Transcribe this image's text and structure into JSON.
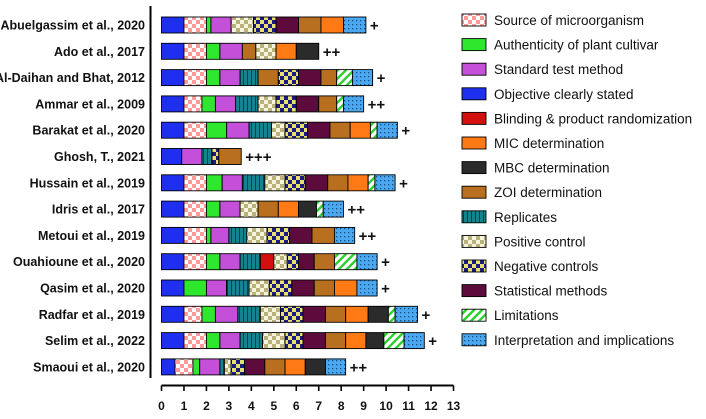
{
  "chart_data": {
    "type": "bar",
    "stacked": true,
    "orientation": "horizontal",
    "title": "",
    "xlabel": "",
    "ylabel": "",
    "xlim": [
      0,
      13
    ],
    "x_ticks": [
      "0",
      "1",
      "2",
      "3",
      "4",
      "5",
      "6",
      "7",
      "8",
      "9",
      "10",
      "11",
      "12",
      "13"
    ],
    "criteria": [
      {
        "key": "src",
        "name": "Source of microorganism",
        "color": "#ff9a9a",
        "pattern": "checker_red"
      },
      {
        "key": "auth",
        "name": "Authenticity of plant cultivar",
        "color": "#2ee82e",
        "pattern": "solid"
      },
      {
        "key": "std",
        "name": "Standard test method",
        "color": "#c44fd8",
        "pattern": "solid"
      },
      {
        "key": "obj",
        "name": "Objective clearly stated",
        "color": "#1f2ff0",
        "pattern": "solid"
      },
      {
        "key": "blind",
        "name": "Blinding & product randomization",
        "color": "#d40f0f",
        "pattern": "solid"
      },
      {
        "key": "mic",
        "name": "MIC determination",
        "color": "#ff7a14",
        "pattern": "solid"
      },
      {
        "key": "mbc",
        "name": "MBC determination",
        "color": "#2b2b2b",
        "pattern": "solid"
      },
      {
        "key": "zoi",
        "name": "ZOI determination",
        "color": "#b87020",
        "pattern": "solid"
      },
      {
        "key": "rep",
        "name": "Replicates",
        "color": "#14838f",
        "pattern": "vstripes"
      },
      {
        "key": "pos",
        "name": "Positive control",
        "color": "#e4e0b8",
        "pattern": "checker_olive"
      },
      {
        "key": "neg",
        "name": "Negative controls",
        "color": "#2020a0",
        "pattern": "checker_navy"
      },
      {
        "key": "stat",
        "name": "Statistical methods",
        "color": "#5c0b3c",
        "pattern": "solid"
      },
      {
        "key": "lim",
        "name": "Limitations",
        "color": "#2fd02f",
        "pattern": "diag"
      },
      {
        "key": "interp",
        "name": "Interpretation and implications",
        "color": "#4aa8f0",
        "pattern": "dots"
      }
    ],
    "studies": [
      {
        "label": "Abuelgassim et al., 2020",
        "rating": "+",
        "segments": [
          [
            "obj",
            1
          ],
          [
            "src",
            1
          ],
          [
            "auth",
            0.2
          ],
          [
            "std",
            0.9
          ],
          [
            "pos",
            1
          ],
          [
            "neg",
            1
          ],
          [
            "stat",
            1
          ],
          [
            "zoi",
            1
          ],
          [
            "mic",
            1
          ],
          [
            "interp",
            1
          ]
        ]
      },
      {
        "label": "Ado et al., 2017",
        "rating": "++",
        "segments": [
          [
            "obj",
            1
          ],
          [
            "src",
            1
          ],
          [
            "auth",
            0.6
          ],
          [
            "std",
            1
          ],
          [
            "zoi",
            0.6
          ],
          [
            "pos",
            0.9
          ],
          [
            "mic",
            0.9
          ],
          [
            "mbc",
            1
          ]
        ]
      },
      {
        "label": "Al-Daihan and Bhat, 2012",
        "rating": "+",
        "segments": [
          [
            "obj",
            1
          ],
          [
            "src",
            1
          ],
          [
            "auth",
            0.6
          ],
          [
            "std",
            0.9
          ],
          [
            "rep",
            0.8
          ],
          [
            "zoi",
            0.9
          ],
          [
            "neg",
            0.9
          ],
          [
            "stat",
            1
          ],
          [
            "zoi",
            0.7
          ],
          [
            "lim",
            0.7
          ],
          [
            "interp",
            0.9
          ]
        ]
      },
      {
        "label": "Ammar et al., 2009",
        "rating": "++",
        "segments": [
          [
            "obj",
            1
          ],
          [
            "src",
            0.8
          ],
          [
            "auth",
            0.6
          ],
          [
            "std",
            0.9
          ],
          [
            "rep",
            1
          ],
          [
            "pos",
            0.8
          ],
          [
            "neg",
            0.9
          ],
          [
            "stat",
            1
          ],
          [
            "zoi",
            0.8
          ],
          [
            "lim",
            0.3
          ],
          [
            "interp",
            0.9
          ]
        ]
      },
      {
        "label": "Barakat et al., 2020",
        "rating": "+",
        "segments": [
          [
            "obj",
            1
          ],
          [
            "src",
            1
          ],
          [
            "auth",
            0.9
          ],
          [
            "std",
            1
          ],
          [
            "rep",
            1
          ],
          [
            "pos",
            0.6
          ],
          [
            "neg",
            1
          ],
          [
            "stat",
            1
          ],
          [
            "zoi",
            0.9
          ],
          [
            "mic",
            0.9
          ],
          [
            "lim",
            0.3
          ],
          [
            "interp",
            0.9
          ]
        ]
      },
      {
        "label": "Ghosh, T., 2021",
        "rating": "+++",
        "segments": [
          [
            "obj",
            0.9
          ],
          [
            "std",
            0.9
          ],
          [
            "rep",
            0.45
          ],
          [
            "neg",
            0.3
          ],
          [
            "zoi",
            1.0
          ]
        ]
      },
      {
        "label": "Hussain et al., 2019",
        "rating": "+",
        "segments": [
          [
            "obj",
            1
          ],
          [
            "src",
            1
          ],
          [
            "auth",
            0.7
          ],
          [
            "std",
            0.9
          ],
          [
            "rep",
            1
          ],
          [
            "pos",
            0.9
          ],
          [
            "neg",
            0.9
          ],
          [
            "stat",
            1
          ],
          [
            "zoi",
            0.9
          ],
          [
            "mic",
            0.9
          ],
          [
            "lim",
            0.3
          ],
          [
            "interp",
            0.9
          ]
        ]
      },
      {
        "label": "Idris et al., 2017",
        "rating": "++",
        "segments": [
          [
            "obj",
            1
          ],
          [
            "src",
            1
          ],
          [
            "auth",
            0.6
          ],
          [
            "std",
            0.9
          ],
          [
            "pos",
            0.8
          ],
          [
            "zoi",
            0.9
          ],
          [
            "mic",
            0.9
          ],
          [
            "mbc",
            0.8
          ],
          [
            "lim",
            0.3
          ],
          [
            "interp",
            0.9
          ]
        ]
      },
      {
        "label": "Metoui et al., 2019",
        "rating": "++",
        "segments": [
          [
            "obj",
            1
          ],
          [
            "src",
            1
          ],
          [
            "auth",
            0.2
          ],
          [
            "std",
            0.8
          ],
          [
            "rep",
            0.8
          ],
          [
            "pos",
            0.9
          ],
          [
            "neg",
            1
          ],
          [
            "stat",
            1
          ],
          [
            "zoi",
            1
          ],
          [
            "interp",
            0.9
          ]
        ]
      },
      {
        "label": "Ouahioune et al., 2020",
        "rating": "+",
        "segments": [
          [
            "obj",
            1
          ],
          [
            "src",
            1
          ],
          [
            "auth",
            0.6
          ],
          [
            "std",
            0.9
          ],
          [
            "rep",
            0.9
          ],
          [
            "blind",
            0.6
          ],
          [
            "pos",
            0.6
          ],
          [
            "neg",
            0.5
          ],
          [
            "stat",
            0.7
          ],
          [
            "zoi",
            0.9
          ],
          [
            "lim",
            1
          ],
          [
            "interp",
            0.9
          ]
        ]
      },
      {
        "label": "Qasim et al., 2020",
        "rating": "+",
        "segments": [
          [
            "obj",
            1
          ],
          [
            "auth",
            1
          ],
          [
            "std",
            0.9
          ],
          [
            "rep",
            1
          ],
          [
            "pos",
            0.9
          ],
          [
            "neg",
            1
          ],
          [
            "stat",
            1
          ],
          [
            "zoi",
            0.9
          ],
          [
            "mic",
            1
          ],
          [
            "interp",
            0.9
          ]
        ]
      },
      {
        "label": "Radfar et al., 2019",
        "rating": "+",
        "segments": [
          [
            "obj",
            1
          ],
          [
            "src",
            0.8
          ],
          [
            "auth",
            0.6
          ],
          [
            "std",
            1
          ],
          [
            "rep",
            1
          ],
          [
            "pos",
            0.9
          ],
          [
            "neg",
            1
          ],
          [
            "stat",
            1
          ],
          [
            "zoi",
            0.9
          ],
          [
            "mic",
            1
          ],
          [
            "mbc",
            0.9
          ],
          [
            "lim",
            0.3
          ],
          [
            "interp",
            1
          ]
        ]
      },
      {
        "label": "Selim et al., 2022",
        "rating": "+",
        "segments": [
          [
            "obj",
            1
          ],
          [
            "src",
            1
          ],
          [
            "auth",
            0.6
          ],
          [
            "std",
            0.9
          ],
          [
            "rep",
            1
          ],
          [
            "pos",
            1
          ],
          [
            "neg",
            0.8
          ],
          [
            "stat",
            1
          ],
          [
            "zoi",
            0.9
          ],
          [
            "mic",
            0.9
          ],
          [
            "mbc",
            0.8
          ],
          [
            "lim",
            0.9
          ],
          [
            "interp",
            0.9
          ]
        ]
      },
      {
        "label": "Smaoui et al., 2020",
        "rating": "++",
        "segments": [
          [
            "obj",
            0.6
          ],
          [
            "src",
            0.8
          ],
          [
            "auth",
            0.3
          ],
          [
            "std",
            0.9
          ],
          [
            "rep",
            0.2
          ],
          [
            "pos",
            0.3
          ],
          [
            "neg",
            0.6
          ],
          [
            "stat",
            0.9
          ],
          [
            "zoi",
            0.9
          ],
          [
            "mic",
            0.9
          ],
          [
            "mbc",
            0.9
          ],
          [
            "interp",
            0.9
          ]
        ]
      }
    ]
  }
}
